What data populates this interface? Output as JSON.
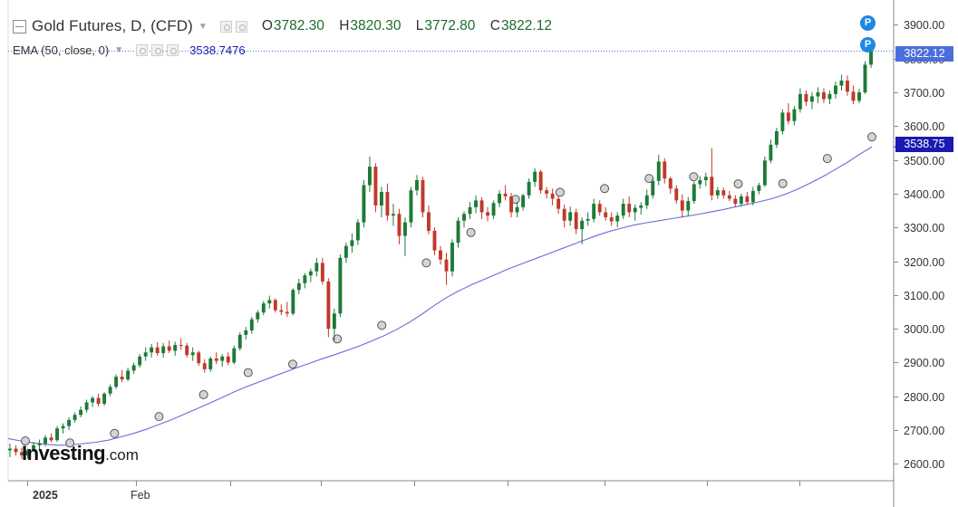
{
  "header": {
    "instrument": "Gold Futures, D, (CFD)",
    "ohlc": [
      {
        "key": "O",
        "value": "3782.30"
      },
      {
        "key": "H",
        "value": "3820.30"
      },
      {
        "key": "L",
        "value": "3772.80"
      },
      {
        "key": "C",
        "value": "3822.12"
      }
    ]
  },
  "indicator": {
    "label": "EMA (50, close, 0)",
    "value": "3538.7476"
  },
  "price_tags": {
    "last": "3822.12",
    "ema": "3538.75"
  },
  "markers": [
    "P",
    "P"
  ],
  "logo": {
    "name": "Investing",
    "suffix": ".com"
  },
  "colors": {
    "up": "#1d7a38",
    "down": "#c0392b",
    "ema_line": "#6b6bd6",
    "last_price_line": "#4b6edd",
    "ema_tag": "#1a1ab0",
    "marker": "#1e88e5",
    "grid": "#e6e6e6"
  },
  "chart_data": {
    "type": "candlestick",
    "title": "Gold Futures, D, (CFD)",
    "ylim": [
      2550,
      3960
    ],
    "y_ticks": [
      "3900.00",
      "3800.00",
      "3700.00",
      "3600.00",
      "3500.00",
      "3400.00",
      "3300.00",
      "3200.00",
      "3100.00",
      "3000.00",
      "2900.00",
      "2800.00",
      "2700.00",
      "2600.00"
    ],
    "x_labels": [
      "2025",
      "Feb"
    ],
    "grid": false,
    "last_close": 3822.12,
    "ema_last": 3538.75,
    "candles": [
      [
        2640,
        2660,
        2620,
        2645
      ],
      [
        2645,
        2655,
        2625,
        2635
      ],
      [
        2635,
        2648,
        2615,
        2625
      ],
      [
        2625,
        2645,
        2615,
        2640
      ],
      [
        2640,
        2665,
        2635,
        2655
      ],
      [
        2655,
        2672,
        2640,
        2660
      ],
      [
        2660,
        2685,
        2652,
        2678
      ],
      [
        2678,
        2690,
        2664,
        2670
      ],
      [
        2670,
        2712,
        2665,
        2705
      ],
      [
        2705,
        2720,
        2690,
        2712
      ],
      [
        2712,
        2738,
        2700,
        2730
      ],
      [
        2730,
        2752,
        2722,
        2745
      ],
      [
        2745,
        2770,
        2738,
        2760
      ],
      [
        2760,
        2790,
        2752,
        2782
      ],
      [
        2782,
        2800,
        2768,
        2795
      ],
      [
        2795,
        2808,
        2770,
        2778
      ],
      [
        2778,
        2812,
        2772,
        2808
      ],
      [
        2808,
        2835,
        2800,
        2828
      ],
      [
        2828,
        2865,
        2822,
        2858
      ],
      [
        2858,
        2878,
        2842,
        2850
      ],
      [
        2850,
        2885,
        2845,
        2876
      ],
      [
        2876,
        2900,
        2866,
        2892
      ],
      [
        2892,
        2925,
        2885,
        2918
      ],
      [
        2918,
        2945,
        2905,
        2930
      ],
      [
        2930,
        2955,
        2915,
        2945
      ],
      [
        2945,
        2960,
        2920,
        2928
      ],
      [
        2928,
        2958,
        2915,
        2948
      ],
      [
        2948,
        2965,
        2928,
        2935
      ],
      [
        2935,
        2962,
        2920,
        2952
      ],
      [
        2952,
        2972,
        2938,
        2950
      ],
      [
        2950,
        2958,
        2915,
        2922
      ],
      [
        2922,
        2945,
        2905,
        2930
      ],
      [
        2930,
        2935,
        2890,
        2898
      ],
      [
        2898,
        2910,
        2870,
        2880
      ],
      [
        2880,
        2918,
        2872,
        2912
      ],
      [
        2912,
        2930,
        2895,
        2905
      ],
      [
        2905,
        2925,
        2888,
        2918
      ],
      [
        2918,
        2930,
        2892,
        2900
      ],
      [
        2900,
        2950,
        2895,
        2942
      ],
      [
        2942,
        2990,
        2935,
        2982
      ],
      [
        2982,
        3005,
        2968,
        2995
      ],
      [
        2995,
        3035,
        2985,
        3028
      ],
      [
        3028,
        3055,
        3018,
        3048
      ],
      [
        3048,
        3082,
        3040,
        3075
      ],
      [
        3075,
        3098,
        3060,
        3085
      ],
      [
        3085,
        3090,
        3048,
        3055
      ],
      [
        3055,
        3072,
        3040,
        3050
      ],
      [
        3050,
        3080,
        3035,
        3045
      ],
      [
        3045,
        3120,
        3040,
        3115
      ],
      [
        3115,
        3148,
        3102,
        3135
      ],
      [
        3135,
        3165,
        3120,
        3158
      ],
      [
        3158,
        3178,
        3138,
        3170
      ],
      [
        3170,
        3210,
        3155,
        3195
      ],
      [
        3195,
        3210,
        3130,
        3140
      ],
      [
        3140,
        3150,
        2975,
        3000
      ],
      [
        3000,
        3060,
        2965,
        3045
      ],
      [
        3045,
        3220,
        3035,
        3210
      ],
      [
        3210,
        3255,
        3195,
        3245
      ],
      [
        3245,
        3282,
        3225,
        3262
      ],
      [
        3262,
        3325,
        3248,
        3315
      ],
      [
        3315,
        3440,
        3300,
        3425
      ],
      [
        3425,
        3510,
        3405,
        3480
      ],
      [
        3480,
        3490,
        3345,
        3365
      ],
      [
        3365,
        3420,
        3330,
        3405
      ],
      [
        3405,
        3430,
        3320,
        3335
      ],
      [
        3335,
        3370,
        3305,
        3340
      ],
      [
        3340,
        3355,
        3250,
        3275
      ],
      [
        3275,
        3330,
        3215,
        3315
      ],
      [
        3315,
        3420,
        3300,
        3410
      ],
      [
        3410,
        3455,
        3395,
        3440
      ],
      [
        3440,
        3450,
        3330,
        3345
      ],
      [
        3345,
        3365,
        3280,
        3290
      ],
      [
        3290,
        3300,
        3218,
        3232
      ],
      [
        3232,
        3245,
        3190,
        3205
      ],
      [
        3205,
        3225,
        3130,
        3170
      ],
      [
        3170,
        3265,
        3155,
        3255
      ],
      [
        3255,
        3330,
        3240,
        3320
      ],
      [
        3320,
        3348,
        3300,
        3340
      ],
      [
        3340,
        3375,
        3325,
        3360
      ],
      [
        3360,
        3395,
        3342,
        3380
      ],
      [
        3380,
        3390,
        3325,
        3345
      ],
      [
        3345,
        3360,
        3318,
        3335
      ],
      [
        3335,
        3380,
        3325,
        3372
      ],
      [
        3372,
        3410,
        3360,
        3400
      ],
      [
        3400,
        3425,
        3380,
        3392
      ],
      [
        3392,
        3402,
        3330,
        3345
      ],
      [
        3345,
        3375,
        3330,
        3360
      ],
      [
        3360,
        3400,
        3350,
        3395
      ],
      [
        3395,
        3445,
        3385,
        3435
      ],
      [
        3435,
        3475,
        3420,
        3465
      ],
      [
        3465,
        3470,
        3400,
        3410
      ],
      [
        3410,
        3420,
        3385,
        3400
      ],
      [
        3400,
        3415,
        3365,
        3385
      ],
      [
        3385,
        3395,
        3340,
        3355
      ],
      [
        3355,
        3368,
        3300,
        3320
      ],
      [
        3320,
        3362,
        3305,
        3345
      ],
      [
        3345,
        3355,
        3280,
        3295
      ],
      [
        3295,
        3330,
        3250,
        3320
      ],
      [
        3320,
        3345,
        3305,
        3325
      ],
      [
        3325,
        3385,
        3315,
        3370
      ],
      [
        3370,
        3380,
        3335,
        3345
      ],
      [
        3345,
        3360,
        3320,
        3330
      ],
      [
        3330,
        3345,
        3305,
        3318
      ],
      [
        3318,
        3345,
        3300,
        3335
      ],
      [
        3335,
        3385,
        3325,
        3370
      ],
      [
        3370,
        3392,
        3330,
        3345
      ],
      [
        3345,
        3368,
        3320,
        3358
      ],
      [
        3358,
        3375,
        3338,
        3365
      ],
      [
        3365,
        3412,
        3355,
        3395
      ],
      [
        3395,
        3445,
        3385,
        3438
      ],
      [
        3438,
        3515,
        3425,
        3495
      ],
      [
        3495,
        3505,
        3430,
        3445
      ],
      [
        3445,
        3450,
        3400,
        3415
      ],
      [
        3415,
        3425,
        3370,
        3380
      ],
      [
        3380,
        3398,
        3330,
        3350
      ],
      [
        3350,
        3390,
        3335,
        3378
      ],
      [
        3378,
        3435,
        3370,
        3428
      ],
      [
        3428,
        3452,
        3415,
        3440
      ],
      [
        3440,
        3462,
        3422,
        3450
      ],
      [
        3450,
        3535,
        3380,
        3395
      ],
      [
        3395,
        3420,
        3385,
        3410
      ],
      [
        3410,
        3418,
        3385,
        3395
      ],
      [
        3395,
        3408,
        3378,
        3385
      ],
      [
        3385,
        3395,
        3360,
        3370
      ],
      [
        3370,
        3400,
        3362,
        3392
      ],
      [
        3392,
        3405,
        3368,
        3375
      ],
      [
        3375,
        3420,
        3365,
        3408
      ],
      [
        3408,
        3432,
        3398,
        3425
      ],
      [
        3425,
        3510,
        3420,
        3498
      ],
      [
        3498,
        3560,
        3490,
        3545
      ],
      [
        3545,
        3595,
        3535,
        3585
      ],
      [
        3585,
        3650,
        3575,
        3640
      ],
      [
        3640,
        3668,
        3605,
        3615
      ],
      [
        3615,
        3660,
        3602,
        3650
      ],
      [
        3650,
        3712,
        3640,
        3695
      ],
      [
        3695,
        3705,
        3660,
        3672
      ],
      [
        3672,
        3700,
        3650,
        3688
      ],
      [
        3688,
        3715,
        3668,
        3700
      ],
      [
        3700,
        3712,
        3668,
        3680
      ],
      [
        3680,
        3705,
        3665,
        3695
      ],
      [
        3695,
        3732,
        3682,
        3720
      ],
      [
        3720,
        3752,
        3705,
        3735
      ],
      [
        3735,
        3750,
        3690,
        3702
      ],
      [
        3702,
        3720,
        3665,
        3675
      ],
      [
        3675,
        3710,
        3668,
        3700
      ],
      [
        3700,
        3792,
        3695,
        3782
      ],
      [
        3782,
        3820.3,
        3772.8,
        3822.12
      ]
    ],
    "ema_series": [
      2675,
      2668,
      2662,
      2658,
      2655,
      2656,
      2660,
      2664,
      2670,
      2680,
      2690,
      2702,
      2716,
      2730,
      2746,
      2762,
      2778,
      2795,
      2812,
      2828,
      2842,
      2856,
      2870,
      2884,
      2897,
      2910,
      2922,
      2935,
      2948,
      2963,
      2979,
      2997,
      3018,
      3042,
      3068,
      3092,
      3112,
      3130,
      3146,
      3162,
      3178,
      3192,
      3206,
      3220,
      3234,
      3248,
      3262,
      3276,
      3288,
      3298,
      3307,
      3314,
      3320,
      3326,
      3332,
      3338,
      3345,
      3352,
      3360,
      3368,
      3376,
      3385,
      3397,
      3412,
      3430,
      3449,
      3470,
      3492,
      3516,
      3538.75
    ],
    "ema_markers": [
      2668,
      2662,
      2690,
      2740,
      2805,
      2870,
      2895,
      2970,
      3010,
      3195,
      3285,
      3383,
      3404,
      3415,
      3445,
      3450,
      3429,
      3430,
      3504,
      3568
    ]
  }
}
